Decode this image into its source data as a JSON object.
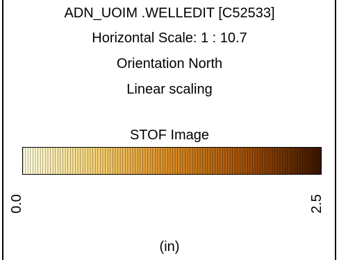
{
  "header": {
    "title": "ADN_UOIM .WELLEDIT [C52533]",
    "horizontal_scale": "Horizontal Scale: 1 : 10.7",
    "orientation": "Orientation North",
    "scaling": "Linear scaling"
  },
  "legend": {
    "title": "STOF Image",
    "min_label": "0.0",
    "max_label": "2.5",
    "unit": "(in)",
    "min_value": 0.0,
    "max_value": 2.5,
    "colors": {
      "start": "#FFFFE0",
      "mid1": "#F5D070",
      "mid2": "#D98A20",
      "mid3": "#A04E08",
      "end": "#3A1500"
    }
  }
}
